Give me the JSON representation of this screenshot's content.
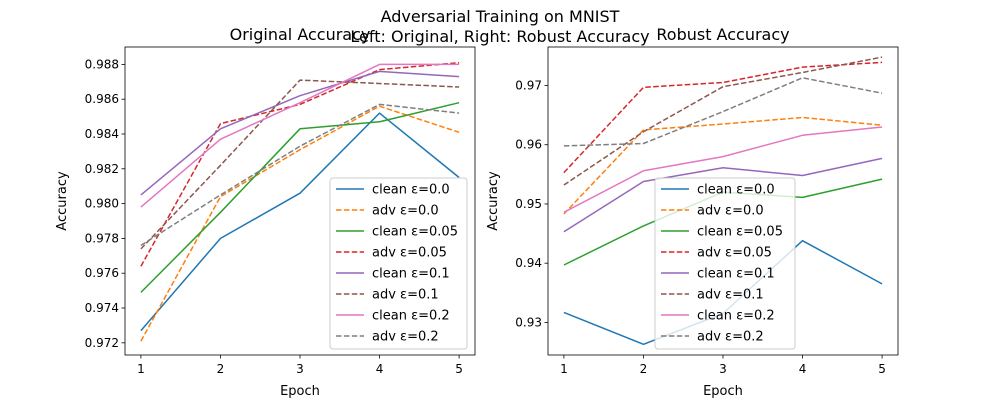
{
  "figure": {
    "suptitle_line1": "Adversarial Training on MNIST",
    "suptitle_line2": "Left: Original, Right: Robust Accuracy"
  },
  "colors": {
    "blue": "#1f77b4",
    "orange": "#ff7f0e",
    "green": "#2ca02c",
    "red": "#d62728",
    "purple": "#9467bd",
    "brown": "#8c564b",
    "pink": "#e377c2",
    "gray": "#7f7f7f"
  },
  "chart_data": [
    {
      "type": "line",
      "title": "Original Accuracy",
      "xlabel": "Epoch",
      "ylabel": "Accuracy",
      "x": [
        1,
        2,
        3,
        4,
        5
      ],
      "xlim": [
        0.8,
        5.2
      ],
      "ylim": [
        0.9713,
        0.989
      ],
      "yticks": [
        0.972,
        0.974,
        0.976,
        0.978,
        0.98,
        0.982,
        0.984,
        0.986,
        0.988
      ],
      "ytick_labels": [
        "0.972",
        "0.974",
        "0.976",
        "0.978",
        "0.980",
        "0.982",
        "0.984",
        "0.986",
        "0.988"
      ],
      "xticks": [
        1,
        2,
        3,
        4,
        5
      ],
      "grid": false,
      "legend_loc": "lower right",
      "series": [
        {
          "name": "clean ε=0.0",
          "color": "blue",
          "dash": "solid",
          "values": [
            0.9727,
            0.978,
            0.9806,
            0.9852,
            0.9815
          ]
        },
        {
          "name": "adv ε=0.0",
          "color": "orange",
          "dash": "dashed",
          "values": [
            0.9721,
            0.9804,
            0.9831,
            0.9856,
            0.9841
          ]
        },
        {
          "name": "clean ε=0.05",
          "color": "green",
          "dash": "solid",
          "values": [
            0.9749,
            0.9795,
            0.9843,
            0.9847,
            0.9858
          ]
        },
        {
          "name": "adv ε=0.05",
          "color": "red",
          "dash": "dashed",
          "values": [
            0.9764,
            0.9846,
            0.9857,
            0.9877,
            0.9881
          ]
        },
        {
          "name": "clean ε=0.1",
          "color": "purple",
          "dash": "solid",
          "values": [
            0.9805,
            0.9843,
            0.9862,
            0.9876,
            0.9873
          ]
        },
        {
          "name": "adv ε=0.1",
          "color": "brown",
          "dash": "dashed",
          "values": [
            0.9774,
            0.9822,
            0.9871,
            0.9869,
            0.9867
          ]
        },
        {
          "name": "clean ε=0.2",
          "color": "pink",
          "dash": "solid",
          "values": [
            0.9798,
            0.9837,
            0.9858,
            0.988,
            0.988
          ]
        },
        {
          "name": "adv ε=0.2",
          "color": "gray",
          "dash": "dashed",
          "values": [
            0.9776,
            0.9805,
            0.9833,
            0.9857,
            0.9852
          ]
        }
      ]
    },
    {
      "type": "line",
      "title": "Robust Accuracy",
      "xlabel": "Epoch",
      "ylabel": "Accuracy",
      "x": [
        1,
        2,
        3,
        4,
        5
      ],
      "xlim": [
        0.8,
        5.2
      ],
      "ylim": [
        0.9245,
        0.9765
      ],
      "yticks": [
        0.93,
        0.94,
        0.95,
        0.96,
        0.97
      ],
      "ytick_labels": [
        "0.93",
        "0.94",
        "0.95",
        "0.96",
        "0.97"
      ],
      "xticks": [
        1,
        2,
        3,
        4,
        5
      ],
      "grid": false,
      "legend_loc": "lower center",
      "series": [
        {
          "name": "clean ε=0.0",
          "color": "blue",
          "dash": "solid",
          "values": [
            0.9317,
            0.9263,
            0.9315,
            0.9438,
            0.9365
          ]
        },
        {
          "name": "adv ε=0.0",
          "color": "orange",
          "dash": "dashed",
          "values": [
            0.9483,
            0.9625,
            0.9635,
            0.9646,
            0.9633
          ]
        },
        {
          "name": "clean ε=0.05",
          "color": "green",
          "dash": "solid",
          "values": [
            0.9397,
            0.9463,
            0.952,
            0.9511,
            0.9542
          ]
        },
        {
          "name": "adv ε=0.05",
          "color": "red",
          "dash": "dashed",
          "values": [
            0.9553,
            0.9697,
            0.9705,
            0.9731,
            0.9739
          ]
        },
        {
          "name": "clean ε=0.1",
          "color": "purple",
          "dash": "solid",
          "values": [
            0.9453,
            0.9538,
            0.9561,
            0.9548,
            0.9577
          ]
        },
        {
          "name": "adv ε=0.1",
          "color": "brown",
          "dash": "dashed",
          "values": [
            0.9532,
            0.9622,
            0.9698,
            0.9722,
            0.9748
          ]
        },
        {
          "name": "clean ε=0.2",
          "color": "pink",
          "dash": "solid",
          "values": [
            0.9486,
            0.9556,
            0.958,
            0.9616,
            0.963
          ]
        },
        {
          "name": "adv ε=0.2",
          "color": "gray",
          "dash": "dashed",
          "values": [
            0.9598,
            0.9602,
            0.9656,
            0.9713,
            0.9687
          ]
        }
      ]
    }
  ]
}
